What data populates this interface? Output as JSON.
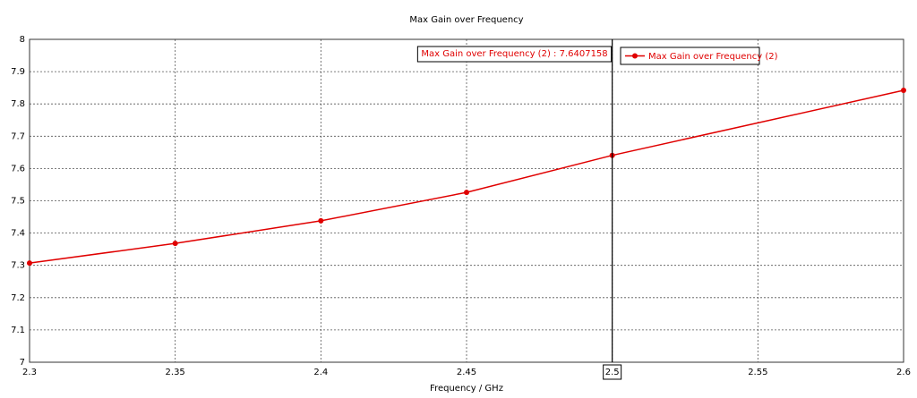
{
  "chart_data": {
    "type": "line",
    "title": "Max Gain over Frequency",
    "x_label": "Frequency / GHz",
    "x": [
      2.3,
      2.35,
      2.4,
      2.45,
      2.5,
      2.6
    ],
    "series": [
      {
        "name": "Max Gain over Frequency (2)",
        "color": "#e00000",
        "values": [
          7.307,
          7.368,
          7.438,
          7.526,
          7.6407158,
          7.842
        ]
      }
    ],
    "xlim": [
      2.3,
      2.6
    ],
    "xticks": [
      2.3,
      2.35,
      2.4,
      2.45,
      2.5,
      2.55,
      2.6
    ],
    "ylim": [
      7,
      8
    ],
    "yticks": [
      7,
      7.1,
      7.2,
      7.3,
      7.4,
      7.5,
      7.6,
      7.7,
      7.8,
      7.9,
      8
    ],
    "grid": true,
    "legend": "top-right",
    "cursor_x": 2.5,
    "cursor_label": "Max Gain over Frequency (2) : 7.6407158"
  }
}
